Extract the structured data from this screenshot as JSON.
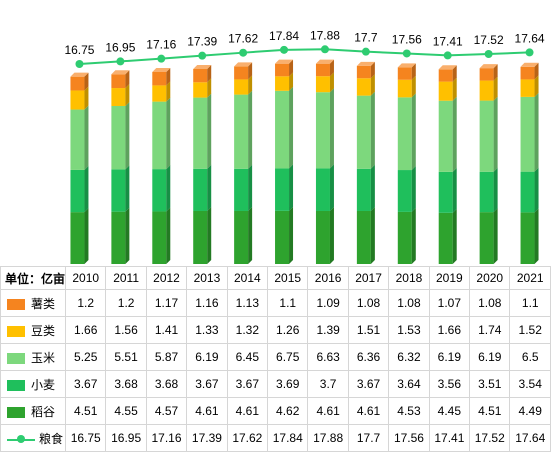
{
  "chart_data": {
    "type": "bar",
    "stacked": true,
    "unit_label": "单位：亿亩",
    "categories": [
      "2010",
      "2011",
      "2012",
      "2013",
      "2014",
      "2015",
      "2016",
      "2017",
      "2018",
      "2019",
      "2020",
      "2021"
    ],
    "series": [
      {
        "name": "稻谷",
        "values": [
          4.51,
          4.55,
          4.57,
          4.61,
          4.61,
          4.62,
          4.61,
          4.61,
          4.53,
          4.45,
          4.51,
          4.49
        ],
        "color": "#2ea32e"
      },
      {
        "name": "小麦",
        "values": [
          3.67,
          3.68,
          3.68,
          3.67,
          3.67,
          3.69,
          3.7,
          3.67,
          3.64,
          3.56,
          3.51,
          3.54
        ],
        "color": "#1fbf5c"
      },
      {
        "name": "玉米",
        "values": [
          5.25,
          5.51,
          5.87,
          6.19,
          6.45,
          6.75,
          6.63,
          6.36,
          6.32,
          6.19,
          6.19,
          6.5
        ],
        "color": "#7dd87d"
      },
      {
        "name": "豆类",
        "values": [
          1.66,
          1.56,
          1.41,
          1.33,
          1.32,
          1.26,
          1.39,
          1.51,
          1.53,
          1.66,
          1.74,
          1.52
        ],
        "color": "#ffc000"
      },
      {
        "name": "薯类",
        "values": [
          1.2,
          1.2,
          1.17,
          1.16,
          1.13,
          1.1,
          1.09,
          1.08,
          1.08,
          1.07,
          1.08,
          1.1
        ],
        "color": "#f5841f"
      }
    ],
    "line_series": {
      "name": "粮食",
      "values": [
        16.75,
        16.95,
        17.16,
        17.39,
        17.62,
        17.84,
        17.88,
        17.7,
        17.56,
        17.41,
        17.52,
        17.64
      ],
      "color": "#2ecc71"
    },
    "legend_placement": "table-row-headers",
    "grid": false
  }
}
